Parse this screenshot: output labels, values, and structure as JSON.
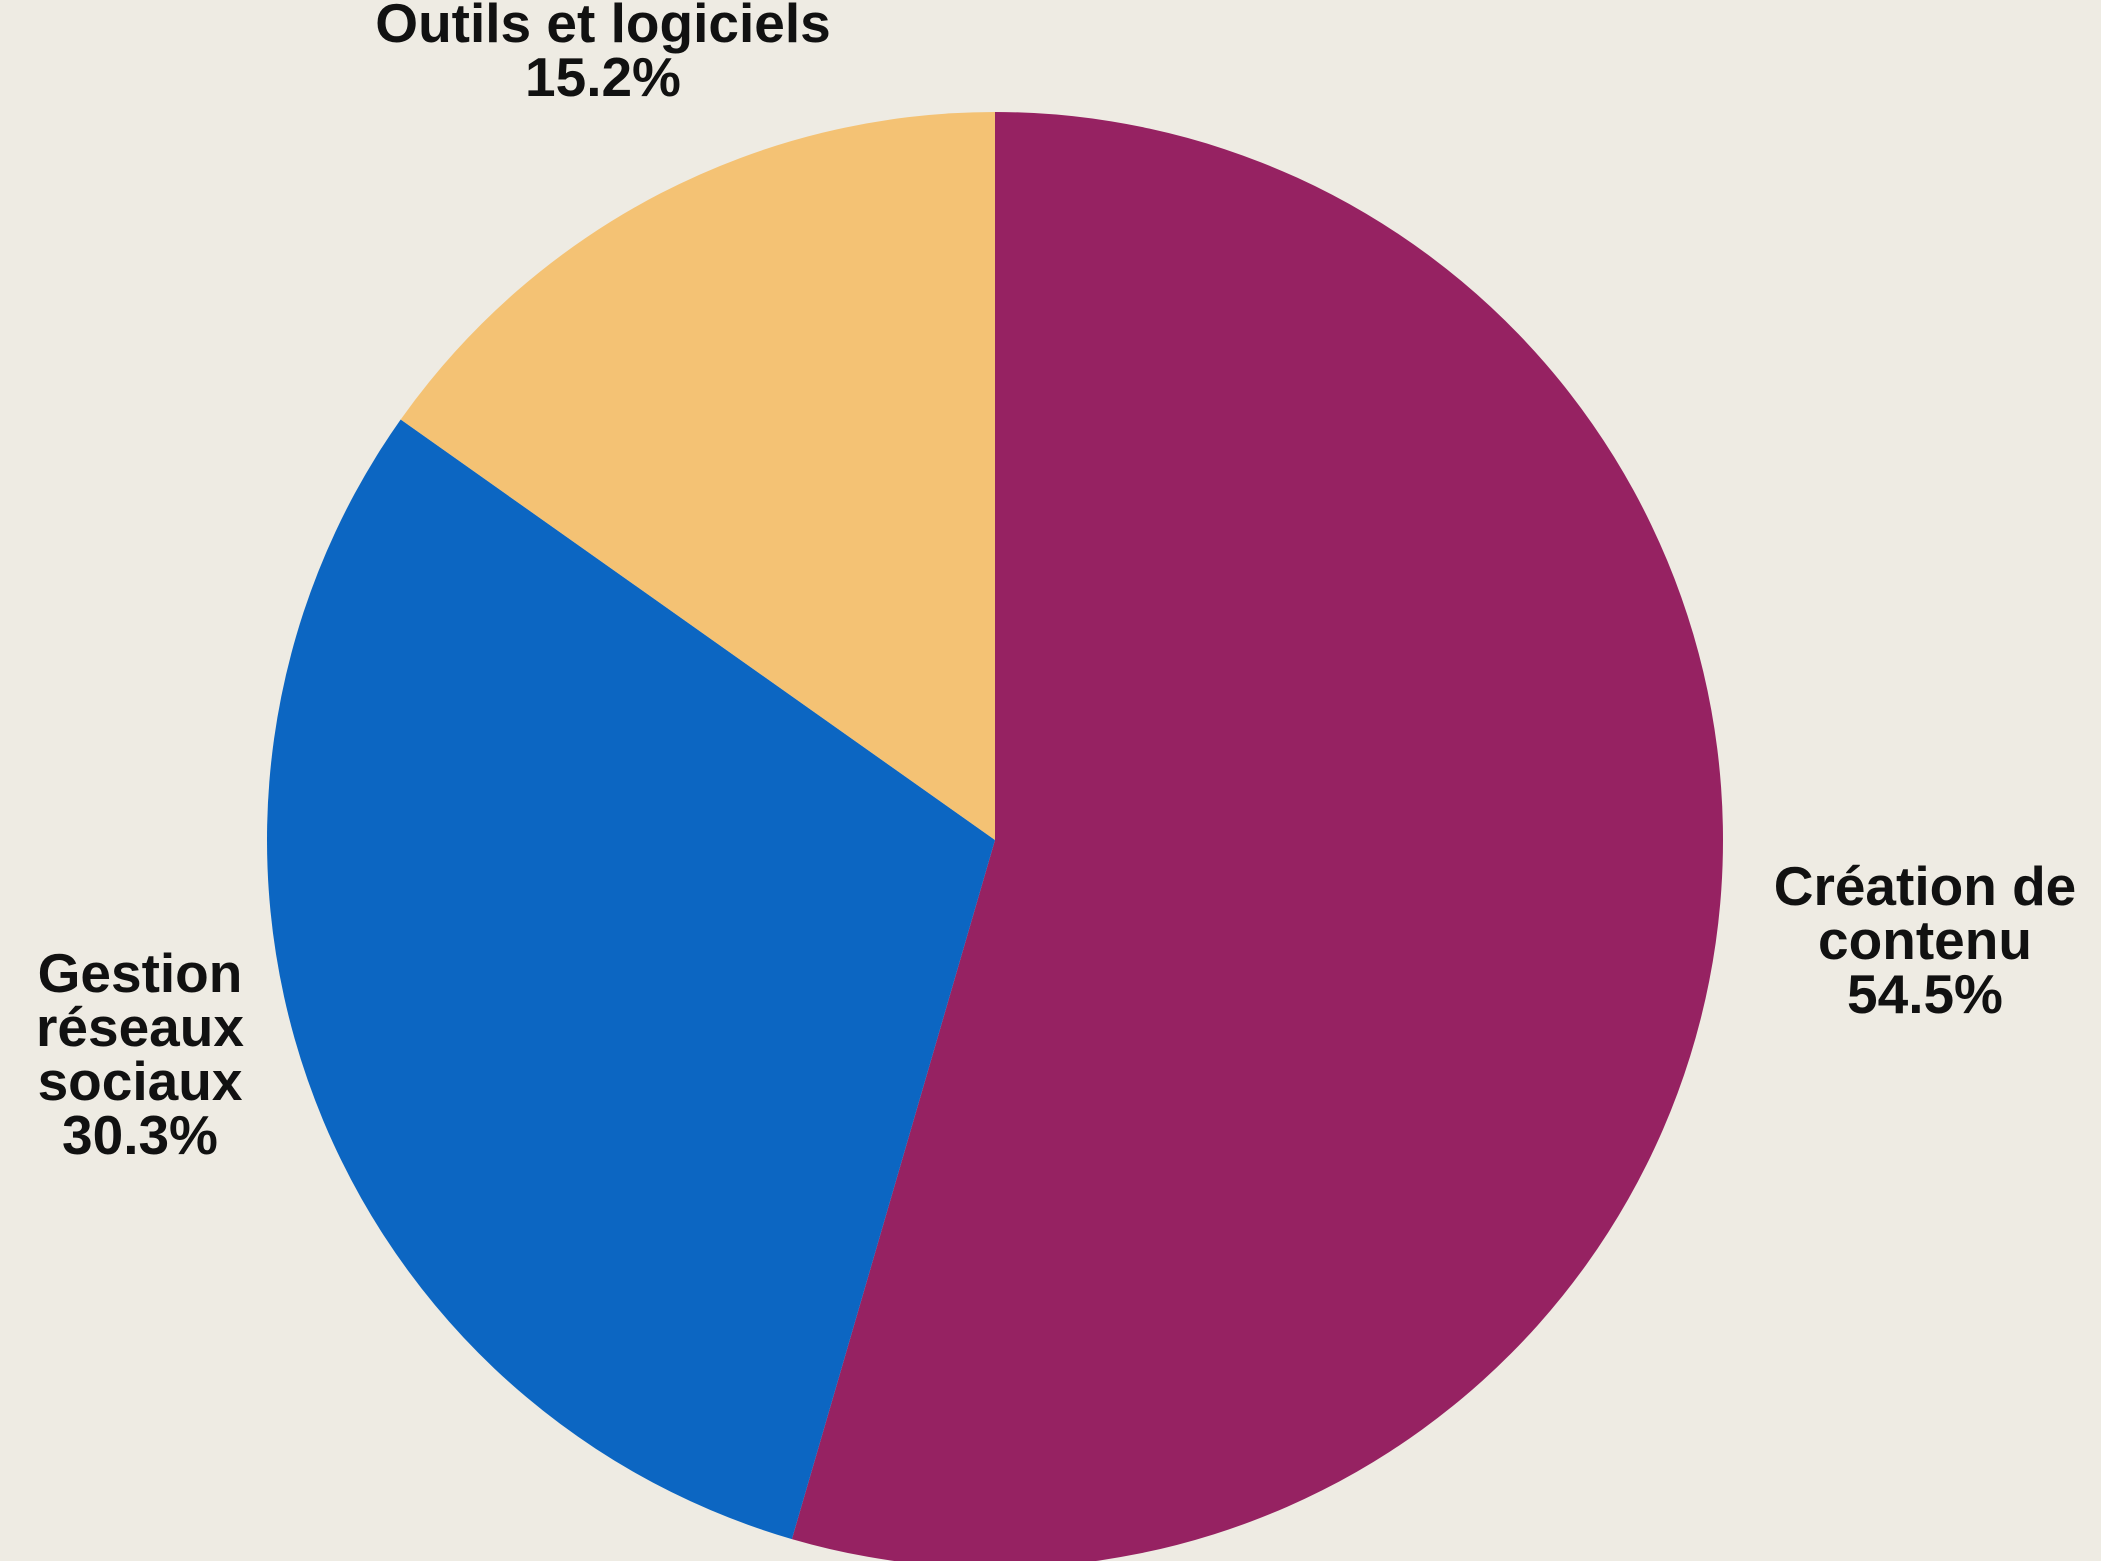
{
  "chart_data": {
    "type": "pie",
    "title": "",
    "slices": [
      {
        "name": "Création de contenu",
        "label_lines": [
          "Création de",
          "contenu"
        ],
        "value": 54.5,
        "display": "54.5%",
        "color": "#962262"
      },
      {
        "name": "Gestion réseaux sociaux",
        "label_lines": [
          "Gestion",
          "réseaux",
          "sociaux"
        ],
        "value": 30.3,
        "display": "30.3%",
        "color": "#0c66c2"
      },
      {
        "name": "Outils et logiciels",
        "label_lines": [
          "Outils et logiciels"
        ],
        "value": 15.2,
        "display": "15.2%",
        "color": "#f4c274"
      }
    ],
    "start_angle": "12 o'clock",
    "direction": "clockwise",
    "legend": "none",
    "background_color": "#eeebe3"
  }
}
